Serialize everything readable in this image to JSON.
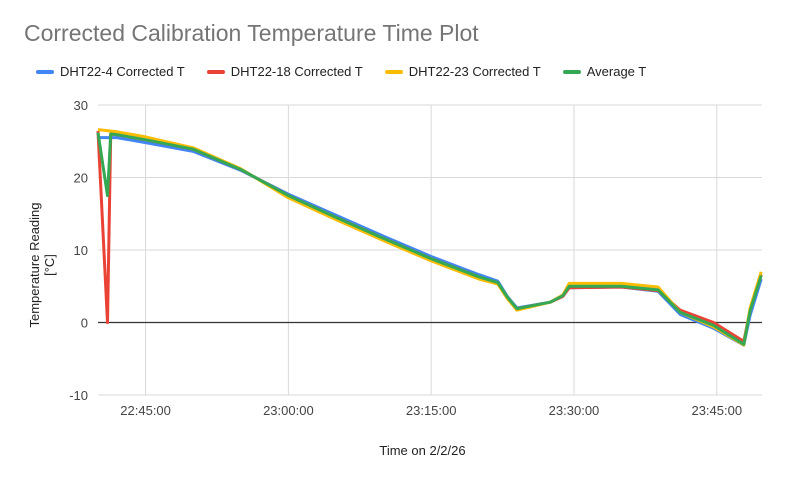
{
  "chart_data": {
    "type": "line",
    "title": "Corrected Calibration Temperature Time Plot",
    "xlabel": "Time on 2/2/26",
    "ylabel": "Temperature Reading [°C]",
    "ylim": [
      -10,
      30
    ],
    "yticks": [
      30,
      20,
      10,
      0,
      -10
    ],
    "xlim": [
      "22:40:00",
      "23:49:45"
    ],
    "xticks": [
      "22:45:00",
      "23:00:00",
      "23:15:00",
      "23:30:00",
      "23:45:00"
    ],
    "grid": true,
    "legend": "top",
    "series": [
      {
        "name": "DHT22-4 Corrected T",
        "color": "#4285f4",
        "points": [
          [
            "22:40:00",
            25.5
          ],
          [
            "22:42:00",
            25.5
          ],
          [
            "22:45:00",
            24.8
          ],
          [
            "22:50:00",
            23.6
          ],
          [
            "22:55:00",
            21.0
          ],
          [
            "23:00:00",
            17.7
          ],
          [
            "23:05:00",
            14.8
          ],
          [
            "23:10:00",
            11.9
          ],
          [
            "23:15:00",
            9.1
          ],
          [
            "23:20:00",
            6.6
          ],
          [
            "23:22:00",
            5.7
          ],
          [
            "23:23:00",
            3.6
          ],
          [
            "23:24:00",
            2.0
          ],
          [
            "23:27:30",
            2.8
          ],
          [
            "23:28:50",
            3.7
          ],
          [
            "23:29:30",
            4.8
          ],
          [
            "23:35:00",
            4.9
          ],
          [
            "23:38:50",
            4.3
          ],
          [
            "23:41:10",
            1.1
          ],
          [
            "23:44:40",
            -0.8
          ],
          [
            "23:47:50",
            -3.1
          ],
          [
            "23:48:30",
            1.0
          ],
          [
            "23:49:40",
            6.0
          ]
        ]
      },
      {
        "name": "DHT22-18 Corrected T",
        "color": "#ea4335",
        "points": [
          [
            "22:40:00",
            26.4
          ],
          [
            "22:41:00",
            0
          ],
          [
            "22:41:20",
            26.0
          ],
          [
            "22:42:00",
            25.9
          ],
          [
            "22:45:00",
            25.2
          ],
          [
            "22:50:00",
            23.9
          ],
          [
            "22:55:00",
            21.1
          ],
          [
            "23:00:00",
            17.5
          ],
          [
            "23:05:00",
            14.5
          ],
          [
            "23:10:00",
            11.6
          ],
          [
            "23:15:00",
            8.8
          ],
          [
            "23:20:00",
            6.3
          ],
          [
            "23:22:00",
            5.4
          ],
          [
            "23:23:00",
            3.4
          ],
          [
            "23:24:00",
            1.9
          ],
          [
            "23:27:30",
            2.8
          ],
          [
            "23:28:50",
            3.6
          ],
          [
            "23:29:30",
            4.8
          ],
          [
            "23:35:00",
            4.9
          ],
          [
            "23:38:50",
            4.4
          ],
          [
            "23:41:10",
            1.7
          ],
          [
            "23:44:40",
            0.0
          ],
          [
            "23:47:50",
            -2.6
          ],
          [
            "23:48:30",
            1.7
          ],
          [
            "23:49:40",
            6.6
          ]
        ]
      },
      {
        "name": "DHT22-23 Corrected T",
        "color": "#fbbc04",
        "points": [
          [
            "22:40:00",
            26.6
          ],
          [
            "22:42:00",
            26.3
          ],
          [
            "22:45:00",
            25.6
          ],
          [
            "22:50:00",
            24.1
          ],
          [
            "22:55:00",
            21.2
          ],
          [
            "23:00:00",
            17.2
          ],
          [
            "23:05:00",
            14.2
          ],
          [
            "23:10:00",
            11.3
          ],
          [
            "23:15:00",
            8.5
          ],
          [
            "23:20:00",
            6.0
          ],
          [
            "23:22:00",
            5.3
          ],
          [
            "23:23:00",
            3.3
          ],
          [
            "23:24:00",
            1.7
          ],
          [
            "23:27:30",
            2.8
          ],
          [
            "23:28:50",
            3.8
          ],
          [
            "23:29:30",
            5.4
          ],
          [
            "23:35:00",
            5.4
          ],
          [
            "23:38:50",
            4.9
          ],
          [
            "23:41:10",
            1.4
          ],
          [
            "23:44:40",
            -0.6
          ],
          [
            "23:47:50",
            -3.1
          ],
          [
            "23:48:30",
            2.0
          ],
          [
            "23:49:40",
            7.0
          ]
        ]
      },
      {
        "name": "Average T",
        "color": "#34a853",
        "points": [
          [
            "22:40:00",
            26.2
          ],
          [
            "22:41:00",
            17.5
          ],
          [
            "22:41:20",
            26.0
          ],
          [
            "22:42:00",
            25.9
          ],
          [
            "22:45:00",
            25.2
          ],
          [
            "22:50:00",
            23.9
          ],
          [
            "22:55:00",
            21.1
          ],
          [
            "23:00:00",
            17.5
          ],
          [
            "23:05:00",
            14.5
          ],
          [
            "23:10:00",
            11.6
          ],
          [
            "23:15:00",
            8.8
          ],
          [
            "23:20:00",
            6.3
          ],
          [
            "23:22:00",
            5.5
          ],
          [
            "23:23:00",
            3.5
          ],
          [
            "23:24:00",
            1.9
          ],
          [
            "23:27:30",
            2.8
          ],
          [
            "23:28:50",
            3.7
          ],
          [
            "23:29:30",
            5.0
          ],
          [
            "23:35:00",
            5.0
          ],
          [
            "23:38:50",
            4.5
          ],
          [
            "23:41:10",
            1.4
          ],
          [
            "23:44:40",
            -0.4
          ],
          [
            "23:47:50",
            -3.0
          ],
          [
            "23:48:30",
            1.6
          ],
          [
            "23:49:40",
            6.5
          ]
        ]
      }
    ]
  }
}
